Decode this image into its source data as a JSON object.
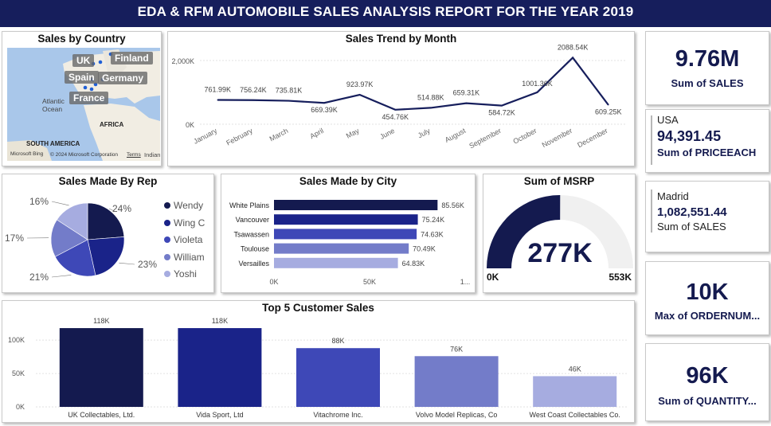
{
  "header": {
    "title": "EDA & RFM AUTOMOBILE SALES ANALYSIS REPORT FOR THE YEAR 2019"
  },
  "colors": {
    "navy": "#161e5c",
    "shades": [
      "#141a4f",
      "#1a2389",
      "#3e48b7",
      "#737cc9",
      "#a6ace0"
    ],
    "gauge_track": "#f0f0f0"
  },
  "map_card": {
    "title": "Sales by Country",
    "labels": [
      "UK",
      "Finland",
      "Spain",
      "Germany",
      "France"
    ],
    "region_labels": [
      "Atlantic Ocean",
      "AFRICA",
      "SOUTH AMERICA",
      "Indian Oce"
    ],
    "footer": {
      "bing": "Microsoft Bing",
      "copyright": "© 2024 Microsoft Corporation",
      "terms": "Terms"
    }
  },
  "trend_card": {
    "title": "Sales Trend by Month",
    "chart_data": {
      "type": "line",
      "x": [
        "January",
        "February",
        "March",
        "April",
        "May",
        "June",
        "July",
        "August",
        "September",
        "October",
        "November",
        "December"
      ],
      "values": [
        761990,
        756240,
        735810,
        669390,
        923970,
        454760,
        514880,
        659310,
        584720,
        1001360,
        2088540,
        609250
      ],
      "value_labels": [
        "761.99K",
        "756.24K",
        "735.81K",
        "669.39K",
        "923.97K",
        "454.76K",
        "514.88K",
        "659.31K",
        "584.72K",
        "1001.36K",
        "2088.54K",
        "609.25K"
      ],
      "y_ticks": [
        "0K",
        "2,000K"
      ],
      "ylim": [
        0,
        2300000
      ],
      "grid": true
    }
  },
  "kpis": {
    "total_sales": {
      "value": "9.76M",
      "label": "Sum of SALES"
    },
    "price_each": {
      "country": "USA",
      "value": "94,391.45",
      "label": "Sum of PRICEEACH"
    },
    "city_sales": {
      "city": "Madrid",
      "value": "1,082,551.44",
      "label": "Sum of SALES"
    },
    "order_number": {
      "value": "10K",
      "label": "Max of ORDERNUM..."
    },
    "quantity": {
      "value": "96K",
      "label": "Sum of QUANTITY..."
    }
  },
  "rep_card": {
    "title": "Sales Made By Rep",
    "chart_data": {
      "type": "pie",
      "categories": [
        "Wendy",
        "Wing C",
        "Violeta",
        "William",
        "Yoshi"
      ],
      "values": [
        24,
        23,
        21,
        17,
        16
      ],
      "value_labels": [
        "24%",
        "23%",
        "21%",
        "17%",
        "16%"
      ]
    }
  },
  "city_card": {
    "title": "Sales Made by City",
    "chart_data": {
      "type": "bar",
      "orientation": "horizontal",
      "categories": [
        "White Plains",
        "Vancouver",
        "Tsawassen",
        "Toulouse",
        "Versailles"
      ],
      "values": [
        85560,
        75240,
        74630,
        70490,
        64830
      ],
      "value_labels": [
        "85.56K",
        "75.24K",
        "74.63K",
        "70.49K",
        "64.83K"
      ],
      "x_ticks": [
        "0K",
        "50K",
        "1..."
      ],
      "xlim": [
        0,
        100000
      ]
    }
  },
  "msrp_card": {
    "title": "Sum of MSRP",
    "chart_data": {
      "type": "gauge",
      "value": 277,
      "min": 0,
      "max": 553,
      "value_label": "277K",
      "min_label": "0K",
      "max_label": "553K"
    }
  },
  "customer_card": {
    "title": "Top 5 Customer Sales",
    "chart_data": {
      "type": "bar",
      "categories": [
        "UK Collectables, Ltd.",
        "Vida Sport, Ltd",
        "Vitachrome Inc.",
        "Volvo Model Replicas, Co",
        "West Coast Collectables Co."
      ],
      "values": [
        118000,
        118000,
        88000,
        76000,
        46000
      ],
      "value_labels": [
        "118K",
        "118K",
        "88K",
        "76K",
        "46K"
      ],
      "y_ticks": [
        "0K",
        "50K",
        "100K"
      ],
      "ylim": [
        0,
        130000
      ],
      "grid": true
    }
  }
}
